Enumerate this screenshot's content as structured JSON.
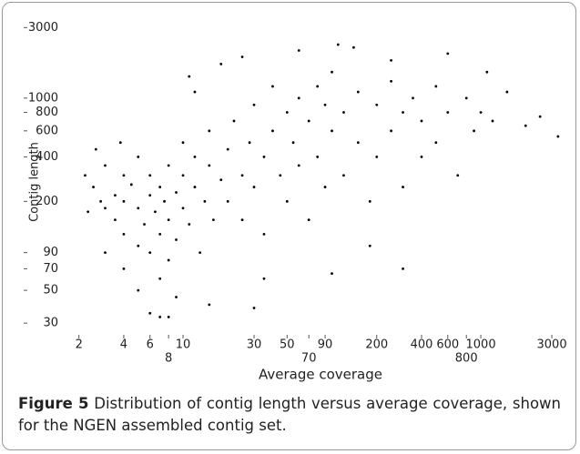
{
  "chart_data": {
    "type": "scatter",
    "xlabel": "Average coverage",
    "ylabel": "Contig length",
    "log_x": true,
    "log_y": true,
    "color": "#000000",
    "xlim": [
      0.9,
      3650
    ],
    "ylim": [
      25,
      3100
    ],
    "xticks": [
      2,
      4,
      6,
      8,
      10,
      30,
      50,
      70,
      90,
      200,
      400,
      600,
      800,
      1000,
      3000
    ],
    "yticks": [
      30,
      50,
      70,
      90,
      200,
      400,
      600,
      800,
      1000,
      3000
    ],
    "x": [
      2.2,
      2.5,
      2.8,
      3,
      3,
      3.5,
      3.5,
      4,
      4,
      4,
      4.5,
      5,
      5,
      5,
      5.5,
      6,
      6,
      6,
      6.5,
      7,
      7,
      7,
      7.5,
      8,
      8,
      8,
      9,
      9,
      10,
      10,
      10,
      11,
      12,
      12,
      13,
      14,
      15,
      15,
      16,
      18,
      20,
      20,
      22,
      25,
      25,
      28,
      30,
      30,
      35,
      35,
      40,
      40,
      45,
      50,
      50,
      55,
      60,
      60,
      70,
      70,
      80,
      80,
      90,
      90,
      100,
      100,
      120,
      120,
      150,
      150,
      180,
      200,
      200,
      250,
      250,
      300,
      300,
      350,
      400,
      400,
      500,
      500,
      600,
      700,
      800,
      900,
      1000,
      1200,
      1500,
      2000,
      2500,
      3300,
      300,
      100,
      30,
      7,
      8,
      6,
      9,
      5,
      4,
      3,
      2.3,
      12,
      18,
      25,
      60,
      110,
      140,
      250,
      600,
      1100,
      180,
      35,
      15,
      11,
      3.8,
      2.6
    ],
    "y": [
      300,
      250,
      200,
      350,
      180,
      220,
      150,
      300,
      120,
      200,
      260,
      180,
      100,
      400,
      140,
      220,
      90,
      300,
      170,
      120,
      250,
      60,
      200,
      150,
      350,
      80,
      230,
      110,
      180,
      300,
      500,
      140,
      250,
      400,
      90,
      200,
      350,
      600,
      150,
      280,
      450,
      200,
      700,
      300,
      150,
      500,
      900,
      250,
      400,
      120,
      600,
      1200,
      300,
      800,
      200,
      500,
      1000,
      350,
      700,
      150,
      1200,
      400,
      900,
      250,
      600,
      1500,
      300,
      800,
      1100,
      500,
      200,
      900,
      400,
      1300,
      600,
      800,
      250,
      1000,
      700,
      400,
      1200,
      500,
      800,
      300,
      1000,
      600,
      800,
      700,
      1100,
      650,
      750,
      550,
      70,
      65,
      38,
      33,
      33,
      35,
      45,
      50,
      70,
      90,
      170,
      1100,
      1700,
      1900,
      2100,
      2300,
      2200,
      1800,
      2000,
      1500,
      100,
      60,
      40,
      1400,
      500,
      450
    ]
  },
  "caption": {
    "label": "Figure 5",
    "text": "Distribution of contig length versus average coverage, shown for the NGEN assembled contig set."
  }
}
